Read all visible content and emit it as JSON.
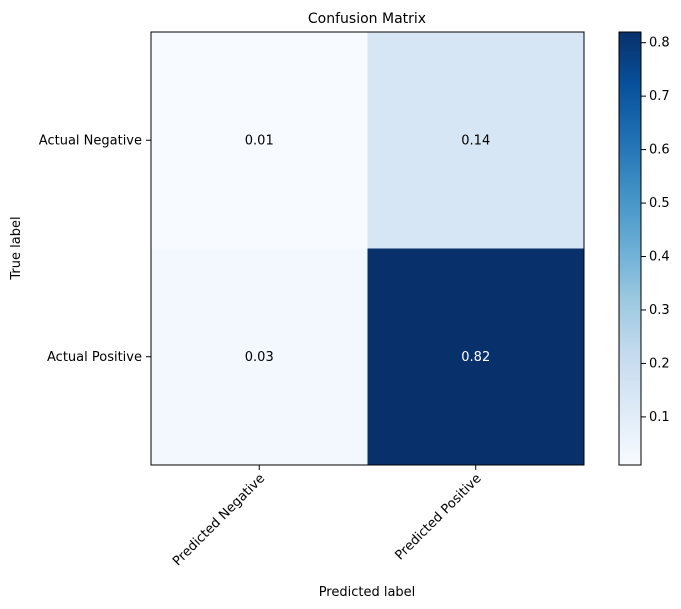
{
  "chart_data": {
    "type": "heatmap",
    "title": "Confusion Matrix",
    "xlabel": "Predicted label",
    "ylabel": "True label",
    "x_categories": [
      "Predicted Negative",
      "Predicted Positive"
    ],
    "y_categories": [
      "Actual Negative",
      "Actual Positive"
    ],
    "values": [
      [
        0.01,
        0.14
      ],
      [
        0.03,
        0.82
      ]
    ],
    "cell_labels": [
      [
        "0.01",
        "0.14"
      ],
      [
        "0.03",
        "0.82"
      ]
    ],
    "colorbar": {
      "range": [
        0.01,
        0.82
      ],
      "ticks": [
        0.1,
        0.2,
        0.3,
        0.4,
        0.5,
        0.6,
        0.7,
        0.8
      ],
      "tick_labels": [
        "0.1",
        "0.2",
        "0.3",
        "0.4",
        "0.5",
        "0.6",
        "0.7",
        "0.8"
      ],
      "colormap": "Blues"
    },
    "grid": false,
    "colors": {
      "low": "#f7fbff",
      "high": "#08306b"
    }
  }
}
